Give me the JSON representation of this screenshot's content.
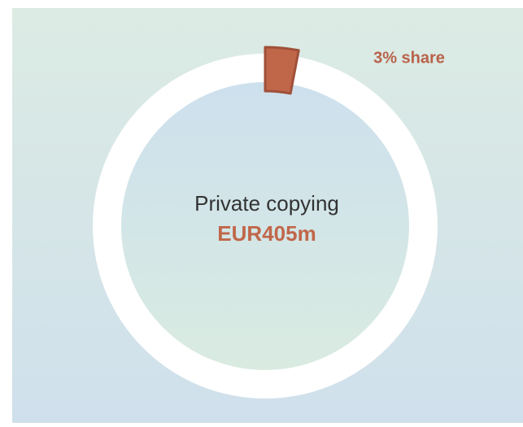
{
  "chart_data": {
    "type": "donut",
    "categories": [
      "Private copying"
    ],
    "values": [
      3
    ],
    "value_labels": [
      "3% share"
    ],
    "color": "#c0674a",
    "annotation": "EUR405m"
  }
}
